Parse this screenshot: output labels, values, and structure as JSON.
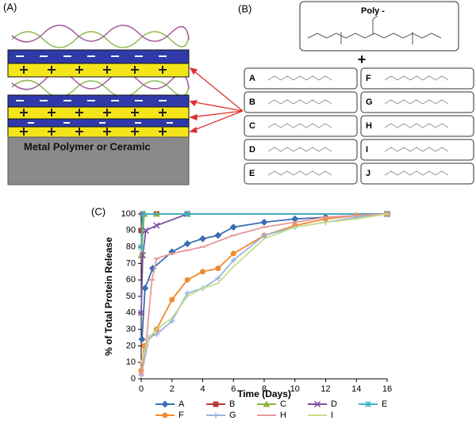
{
  "panel_a": {
    "label": "(A)",
    "substrate": "Metal Polymer or Ceramic"
  },
  "panel_b": {
    "label": "(B)",
    "polymer": "Poly -",
    "plus": "+",
    "amines": [
      "A",
      "B",
      "C",
      "D",
      "E",
      "F",
      "G",
      "H",
      "I",
      "J"
    ]
  },
  "chart_data": {
    "type": "line",
    "panel_label": "(C)",
    "x_label": "Time (Days)",
    "y_label": "% of Total Protein Release",
    "xlim": [
      0,
      16
    ],
    "xticks": [
      0,
      2,
      4,
      6,
      8,
      10,
      12,
      14,
      16
    ],
    "ylim": [
      0,
      100
    ],
    "yticks": [
      0,
      10,
      20,
      30,
      40,
      50,
      60,
      70,
      80,
      90,
      100
    ],
    "grid": false,
    "series": [
      {
        "name": "A",
        "color": "#3a6db4",
        "marker": "diamond",
        "x": [
          0.05,
          0.25,
          0.75,
          2,
          3,
          4,
          5,
          6,
          8,
          10,
          12,
          14,
          16
        ],
        "values": [
          24,
          55,
          67,
          77,
          82,
          85,
          87,
          92,
          95,
          97,
          98,
          99,
          100
        ]
      },
      {
        "name": "B",
        "color": "#b83c38",
        "marker": "square",
        "x": [
          0,
          0.1,
          1,
          3,
          16
        ],
        "values": [
          90,
          100,
          100,
          100,
          100
        ]
      },
      {
        "name": "C",
        "color": "#8ab43c",
        "marker": "triangle",
        "x": [
          0,
          0.2,
          1,
          3,
          16
        ],
        "values": [
          75,
          100,
          100,
          100,
          100
        ]
      },
      {
        "name": "D",
        "color": "#7b4f9f",
        "marker": "x",
        "x": [
          0,
          0.1,
          0.3,
          1,
          3,
          16
        ],
        "values": [
          40,
          75,
          90,
          93,
          100,
          100
        ]
      },
      {
        "name": "E",
        "color": "#3cb2c9",
        "marker": "star",
        "x": [
          0,
          0.1,
          3,
          16
        ],
        "values": [
          80,
          100,
          100,
          100
        ]
      },
      {
        "name": "F",
        "color": "#f28a30",
        "marker": "circle",
        "x": [
          0,
          0.2,
          1,
          2,
          3,
          4,
          5,
          6,
          8,
          10,
          12,
          14,
          16
        ],
        "values": [
          5,
          20,
          30,
          48,
          60,
          65,
          67,
          76,
          87,
          93,
          97,
          99,
          100
        ]
      },
      {
        "name": "G",
        "color": "#9bb5e1",
        "marker": "plus",
        "x": [
          0,
          0.5,
          1,
          2,
          3,
          4,
          5,
          6,
          8,
          10,
          12,
          14,
          16
        ],
        "values": [
          2,
          25,
          27,
          35,
          52,
          55,
          61,
          72,
          87,
          92,
          95,
          98,
          100
        ]
      },
      {
        "name": "H",
        "color": "#e8999a",
        "marker": "dash",
        "x": [
          0,
          0.3,
          0.7,
          1,
          2,
          3,
          4,
          6,
          8,
          10,
          12,
          16
        ],
        "values": [
          3,
          20,
          60,
          73,
          76,
          78,
          80,
          87,
          92,
          95,
          98,
          100
        ]
      },
      {
        "name": "I",
        "color": "#c4e08a",
        "marker": "none",
        "x": [
          0,
          0.5,
          1,
          2,
          3,
          4,
          5,
          6,
          8,
          10,
          12,
          14,
          16
        ],
        "values": [
          10,
          25,
          30,
          37,
          50,
          55,
          58,
          68,
          85,
          92,
          95,
          97,
          100
        ]
      }
    ]
  }
}
